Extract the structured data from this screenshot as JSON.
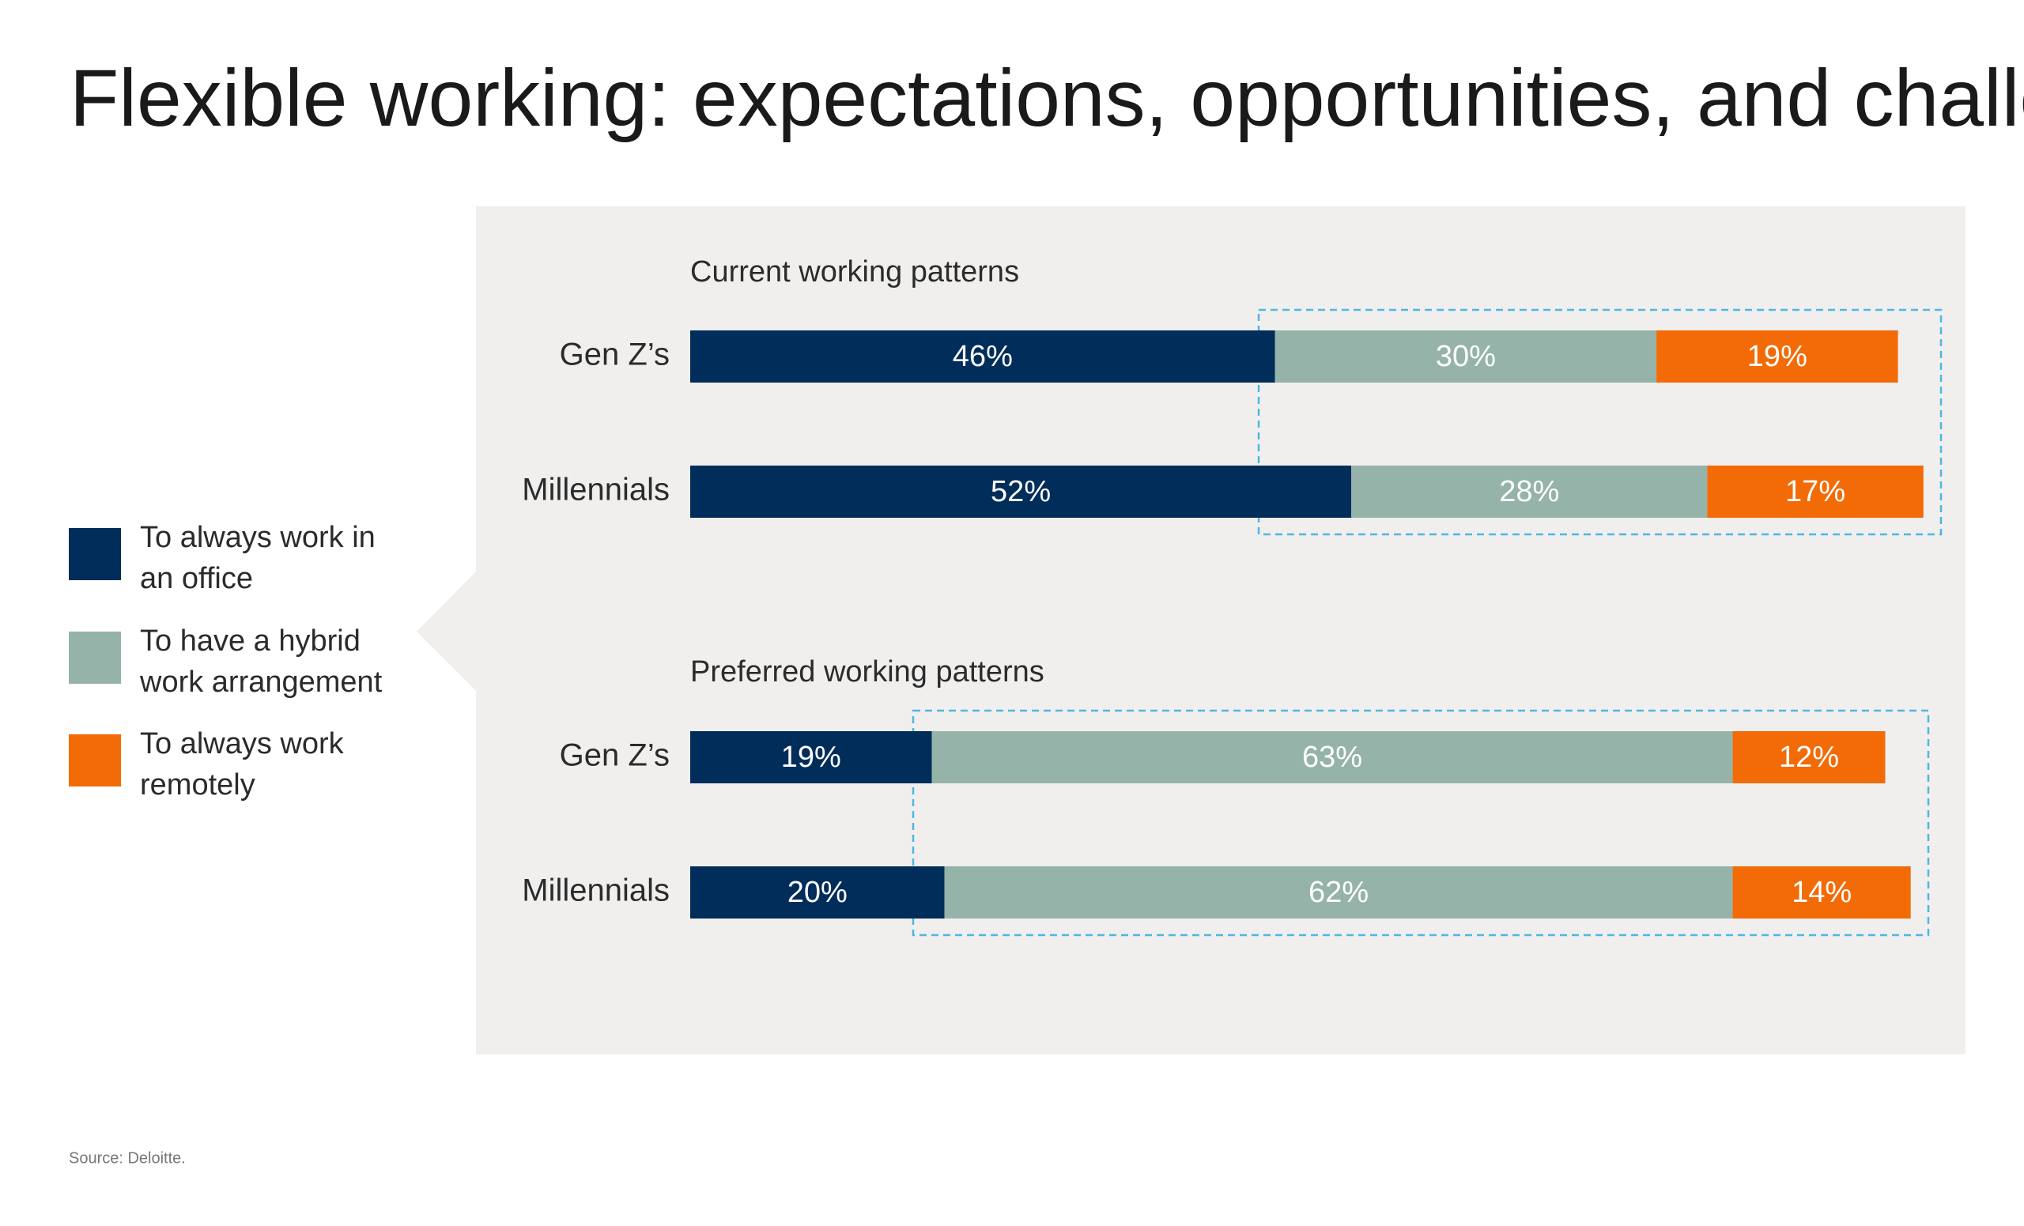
{
  "title": "Flexible working: expectations, opportunities, and challenges",
  "source": "Source: Deloitte.",
  "chart_data": [
    {
      "type": "bar",
      "orientation": "horizontal",
      "stacked": true,
      "title": "Current working patterns",
      "categories": [
        "Gen Z’s",
        "Millennials"
      ],
      "series": [
        {
          "name": "To always work in an office",
          "color": "#002d5a",
          "values": [
            46,
            52
          ],
          "value_labels": [
            "46%",
            "52%"
          ]
        },
        {
          "name": "To have a hybrid work arrangement",
          "color": "#95b3a9",
          "values": [
            30,
            28
          ],
          "value_labels": [
            "30%",
            "28%"
          ]
        },
        {
          "name": "To always work remotely",
          "color": "#f26b07",
          "values": [
            19,
            17
          ],
          "value_labels": [
            "19%",
            "17%"
          ]
        }
      ]
    },
    {
      "type": "bar",
      "orientation": "horizontal",
      "stacked": true,
      "title": "Preferred working patterns",
      "categories": [
        "Gen Z’s",
        "Millennials"
      ],
      "series": [
        {
          "color": "#002d5a",
          "values": [
            19,
            20
          ],
          "value_labels": [
            "19%",
            "20%"
          ]
        },
        {
          "color": "#95b3a9",
          "values": [
            63,
            62
          ],
          "value_labels": [
            "63%",
            "62%"
          ]
        },
        {
          "color": "#f26b07",
          "values": [
            12,
            14
          ],
          "value_labels": [
            "12%",
            "14%"
          ]
        }
      ]
    }
  ]
}
